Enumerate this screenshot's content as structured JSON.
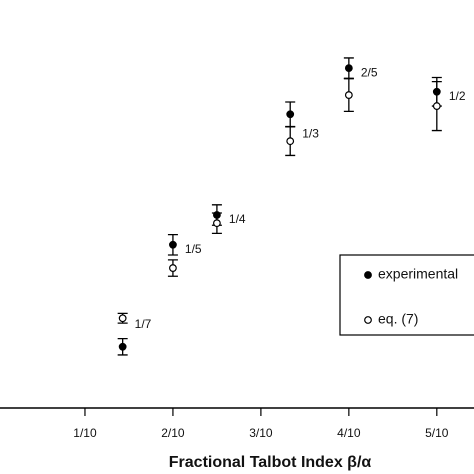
{
  "chart_data": {
    "type": "scatter",
    "x_label": "Fractional Talbot Index β/α",
    "x": [
      0.142857,
      0.2,
      0.25,
      0.333333,
      0.4,
      0.5
    ],
    "annotations": [
      "1/7",
      "1/5",
      "1/4",
      "1/3",
      "2/5",
      "1/2"
    ],
    "series": [
      {
        "name": "experimental",
        "color": "#000000",
        "marker": "filled",
        "values": [
          0.15,
          0.4,
          0.473,
          0.72,
          0.833,
          0.775
        ],
        "errors": [
          0.02,
          0.025,
          0.025,
          0.03,
          0.025,
          0.035
        ]
      },
      {
        "name": "eq. (7)",
        "color": "#000000",
        "marker": "open",
        "values": [
          0.22,
          0.343,
          0.453,
          0.654,
          0.767,
          0.74
        ],
        "errors": [
          0.012,
          0.02,
          0.025,
          0.035,
          0.04,
          0.06
        ]
      }
    ],
    "xlim": [
      0,
      0.54
    ],
    "ylim": [
      0,
      1
    ],
    "xticks": [
      {
        "value": 0.1,
        "label": "1/10"
      },
      {
        "value": 0.2,
        "label": "2/10"
      },
      {
        "value": 0.3,
        "label": "3/10"
      },
      {
        "value": 0.4,
        "label": "4/10"
      },
      {
        "value": 0.5,
        "label": "5/10"
      }
    ],
    "legend": "right"
  }
}
